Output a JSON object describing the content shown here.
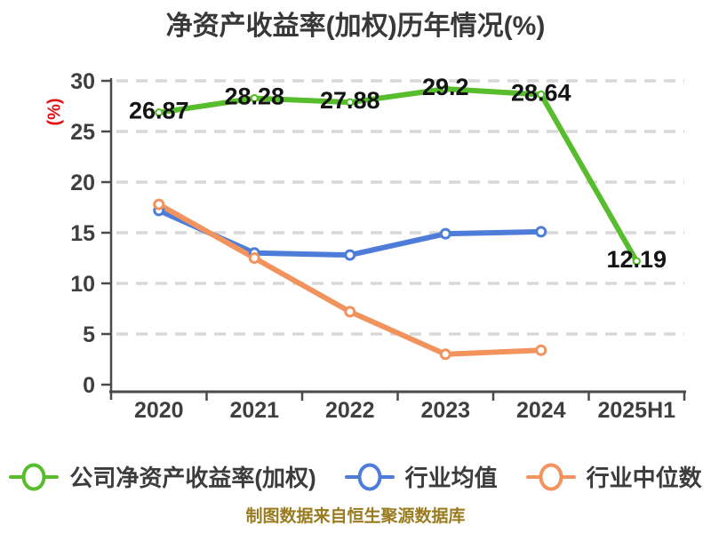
{
  "title": "净资产收益率(加权)历年情况(%)",
  "y_axis_unit": "(%)",
  "footer": "制图数据来自恒生聚源数据库",
  "colors": {
    "company": "#57bd2c",
    "industry_mean": "#4d7dd8",
    "industry_median": "#f2935e",
    "grid": "#d8d8d8",
    "axis": "#4a4a4a",
    "tick_label": "#3f3f3f",
    "data_label": "#141414",
    "title": "#383838",
    "unit": "#e01212",
    "footer": "#9a7b20",
    "marker_fill": "#ffffff"
  },
  "chart_data": {
    "type": "line",
    "title": "净资产收益率(加权)历年情况(%)",
    "categories": [
      "2020",
      "2021",
      "2022",
      "2023",
      "2024",
      "2025H1"
    ],
    "xlabel": "",
    "ylabel": "(%)",
    "ylim": [
      0,
      30
    ],
    "yticks": [
      0,
      5,
      10,
      15,
      20,
      25,
      30
    ],
    "grid": "dashed-horizontal",
    "legend_position": "bottom",
    "series": [
      {
        "name": "公司净资产收益率(加权)",
        "color": "#57bd2c",
        "values": [
          26.87,
          28.28,
          27.88,
          29.2,
          28.64,
          12.19
        ],
        "labels": [
          "26.87",
          "28.28",
          "27.88",
          "29.2",
          "28.64",
          "12.19"
        ]
      },
      {
        "name": "行业均值",
        "color": "#4d7dd8",
        "values": [
          17.2,
          13.0,
          12.8,
          14.9,
          15.1
        ],
        "labels": []
      },
      {
        "name": "行业中位数",
        "color": "#f2935e",
        "values": [
          17.8,
          12.5,
          7.2,
          3.0,
          3.4
        ],
        "labels": []
      }
    ]
  }
}
